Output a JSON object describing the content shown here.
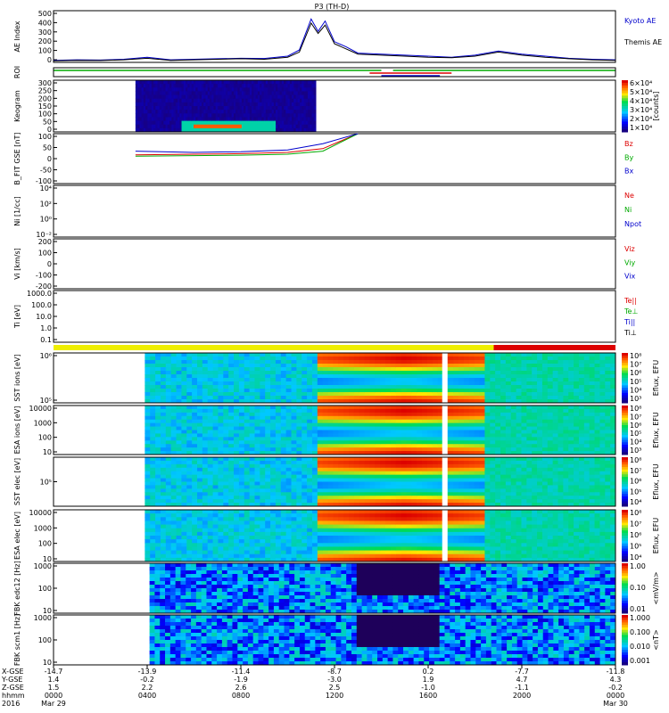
{
  "title": "P3 (TH-D)",
  "colors": {
    "black": "#000000",
    "blue": "#0000cc",
    "green": "#00aa00",
    "red": "#dd0000",
    "yellow": "#eeee00",
    "cyan": "#00cccc"
  },
  "chart_data": [
    {
      "type": "line",
      "panel": "ae",
      "ylabel": "AE Index",
      "yticks": [
        "500",
        "400",
        "300",
        "200",
        "100",
        "0"
      ],
      "ylim": [
        0,
        500
      ],
      "legend": [
        "Kyoto AE",
        "Themis AE"
      ],
      "series": [
        {
          "name": "Kyoto AE",
          "color": "#0000cc",
          "points": [
            [
              0,
              20
            ],
            [
              1,
              25
            ],
            [
              2,
              22
            ],
            [
              3,
              30
            ],
            [
              4,
              50
            ],
            [
              5,
              25
            ],
            [
              6,
              30
            ],
            [
              7,
              35
            ],
            [
              8,
              40
            ],
            [
              9,
              38
            ],
            [
              10,
              60
            ],
            [
              10.5,
              120
            ],
            [
              11,
              420
            ],
            [
              11.3,
              300
            ],
            [
              11.6,
              400
            ],
            [
              12,
              200
            ],
            [
              12.5,
              150
            ],
            [
              13,
              90
            ],
            [
              14,
              80
            ],
            [
              15,
              70
            ],
            [
              16,
              60
            ],
            [
              17,
              50
            ],
            [
              18,
              70
            ],
            [
              19,
              110
            ],
            [
              20,
              80
            ],
            [
              21,
              60
            ],
            [
              22,
              40
            ],
            [
              23,
              30
            ],
            [
              24,
              25
            ]
          ]
        },
        {
          "name": "Themis AE",
          "color": "#000000",
          "points": [
            [
              0,
              15
            ],
            [
              1,
              20
            ],
            [
              2,
              18
            ],
            [
              3,
              25
            ],
            [
              4,
              40
            ],
            [
              5,
              20
            ],
            [
              6,
              25
            ],
            [
              7,
              30
            ],
            [
              8,
              35
            ],
            [
              9,
              30
            ],
            [
              10,
              50
            ],
            [
              10.5,
              100
            ],
            [
              11,
              380
            ],
            [
              11.3,
              280
            ],
            [
              11.6,
              360
            ],
            [
              12,
              180
            ],
            [
              12.5,
              130
            ],
            [
              13,
              80
            ],
            [
              14,
              70
            ],
            [
              15,
              60
            ],
            [
              16,
              50
            ],
            [
              17,
              45
            ],
            [
              18,
              60
            ],
            [
              19,
              100
            ],
            [
              20,
              70
            ],
            [
              21,
              50
            ],
            [
              22,
              35
            ],
            [
              23,
              25
            ],
            [
              24,
              20
            ]
          ]
        }
      ]
    },
    {
      "type": "table",
      "panel": "roi",
      "ylabel": "ROI"
    },
    {
      "type": "heatmap",
      "panel": "keogram",
      "ylabel": "Keogram",
      "yticks": [
        "300",
        "250",
        "200",
        "150",
        "100",
        "50",
        "0"
      ],
      "colorbar_label": "[counts]",
      "colorbar_ticks": [
        "6×10⁴",
        "5×10⁴",
        "4×10⁴",
        "3×10⁴",
        "2×10⁴",
        "1×10⁴"
      ]
    },
    {
      "type": "line",
      "panel": "bfit",
      "ylabel": "B_FIT GSE [nT]",
      "yticks": [
        "100",
        "50",
        "0",
        "-50",
        "-100"
      ],
      "ylim": [
        -100,
        100
      ],
      "legend": [
        "Bz",
        "By",
        "Bx"
      ],
      "series": [
        {
          "name": "Bz",
          "color": "#dd0000",
          "points": [
            [
              3.5,
              15
            ],
            [
              6,
              18
            ],
            [
              8,
              20
            ],
            [
              10,
              25
            ],
            [
              11.5,
              40
            ],
            [
              13,
              100
            ]
          ]
        },
        {
          "name": "By",
          "color": "#00aa00",
          "points": [
            [
              3.5,
              10
            ],
            [
              6,
              12
            ],
            [
              8,
              14
            ],
            [
              10,
              18
            ],
            [
              11.5,
              30
            ],
            [
              13,
              100
            ]
          ]
        },
        {
          "name": "Bx",
          "color": "#0000cc",
          "points": [
            [
              3.5,
              30
            ],
            [
              6,
              25
            ],
            [
              8,
              28
            ],
            [
              10,
              35
            ],
            [
              11.5,
              60
            ],
            [
              13,
              100
            ]
          ]
        }
      ]
    },
    {
      "type": "line",
      "panel": "density",
      "ylabel": "Ni [1/cc]",
      "yticks": [
        "10⁴",
        "10²",
        "10⁰",
        "10⁻²"
      ],
      "legend": [
        "Ne",
        "Ni",
        "Npot"
      ],
      "series": []
    },
    {
      "type": "line",
      "panel": "velocity",
      "ylabel": "Vi [km/s]",
      "yticks": [
        "200",
        "100",
        "0",
        "-100",
        "-200"
      ],
      "ylim": [
        -200,
        200
      ],
      "legend": [
        "Viz",
        "Viy",
        "Vix"
      ],
      "series": []
    },
    {
      "type": "line",
      "panel": "temperature",
      "ylabel": "Ti [eV]",
      "yticks": [
        "1000.0",
        "100.0",
        "10.0",
        "1.0",
        "0.1"
      ],
      "legend": [
        "Te||",
        "Te⊥",
        "Ti||",
        "Ti⊥"
      ],
      "series": []
    },
    {
      "type": "heatmap",
      "panel": "sst_i",
      "ylabel": "SST ions [eV]",
      "yticks": [
        "10⁶",
        "10⁵"
      ],
      "colorbar_label": "Eflux, EFU",
      "colorbar_ticks": [
        "10⁸",
        "10⁷",
        "10⁶",
        "10⁵",
        "10⁴",
        "10³"
      ]
    },
    {
      "type": "heatmap",
      "panel": "esa_i",
      "ylabel": "ESA ions [eV]",
      "yticks": [
        "10000",
        "1000",
        "100",
        "10"
      ],
      "colorbar_label": "Eflux, EFU",
      "colorbar_ticks": [
        "10⁸",
        "10⁷",
        "10⁶",
        "10⁵",
        "10⁴",
        "10³"
      ]
    },
    {
      "type": "heatmap",
      "panel": "sst_e",
      "ylabel": "SST elec [eV]",
      "yticks": [
        "10⁵"
      ],
      "colorbar_label": "Eflux, EFU",
      "colorbar_ticks": [
        "10⁸",
        "10⁷",
        "10⁶",
        "10⁵",
        "10⁴"
      ]
    },
    {
      "type": "heatmap",
      "panel": "esa_e",
      "ylabel": "ESA elec [eV]",
      "yticks": [
        "10000",
        "1000",
        "100",
        "10"
      ],
      "colorbar_label": "Eflux, EFU",
      "colorbar_ticks": [
        "10⁸",
        "10⁷",
        "10⁶",
        "10⁵",
        "10⁴"
      ]
    },
    {
      "type": "heatmap",
      "panel": "fbk_e",
      "ylabel": "FBK edc12 [Hz]",
      "yticks": [
        "1000",
        "100",
        "10"
      ],
      "colorbar_label": "<mV/m>",
      "colorbar_ticks": [
        "1.00",
        "0.10",
        "0.01"
      ]
    },
    {
      "type": "heatmap",
      "panel": "fbk_b",
      "ylabel": "FBK scm1 [Hz]",
      "yticks": [
        "1000",
        "100",
        "10"
      ],
      "colorbar_label": "<nT>",
      "colorbar_ticks": [
        "1.000",
        "0.100",
        "0.010",
        "0.001"
      ]
    }
  ],
  "xaxis": {
    "row_labels": [
      "X-GSE",
      "Y-GSE",
      "Z-GSE",
      "hhmm",
      "2016"
    ],
    "columns": [
      {
        "x": 0,
        "vals": [
          "-14.7",
          "1.4",
          "1.5",
          "0000",
          "Mar 29"
        ]
      },
      {
        "x": 4,
        "vals": [
          "-13.9",
          "-0.2",
          "2.2",
          "0400",
          ""
        ]
      },
      {
        "x": 8,
        "vals": [
          "-11.4",
          "-1.9",
          "2.6",
          "0800",
          ""
        ]
      },
      {
        "x": 12,
        "vals": [
          "-8.7",
          "-3.0",
          "2.5",
          "1200",
          ""
        ]
      },
      {
        "x": 16,
        "vals": [
          "0.2",
          "1.9",
          "-1.0",
          "1600",
          ""
        ]
      },
      {
        "x": 20,
        "vals": [
          "-7.7",
          "4.7",
          "-1.1",
          "2000",
          ""
        ]
      },
      {
        "x": 24,
        "vals": [
          "-11.8",
          "4.3",
          "-0.2",
          "0000",
          "Mar 30"
        ]
      }
    ]
  }
}
